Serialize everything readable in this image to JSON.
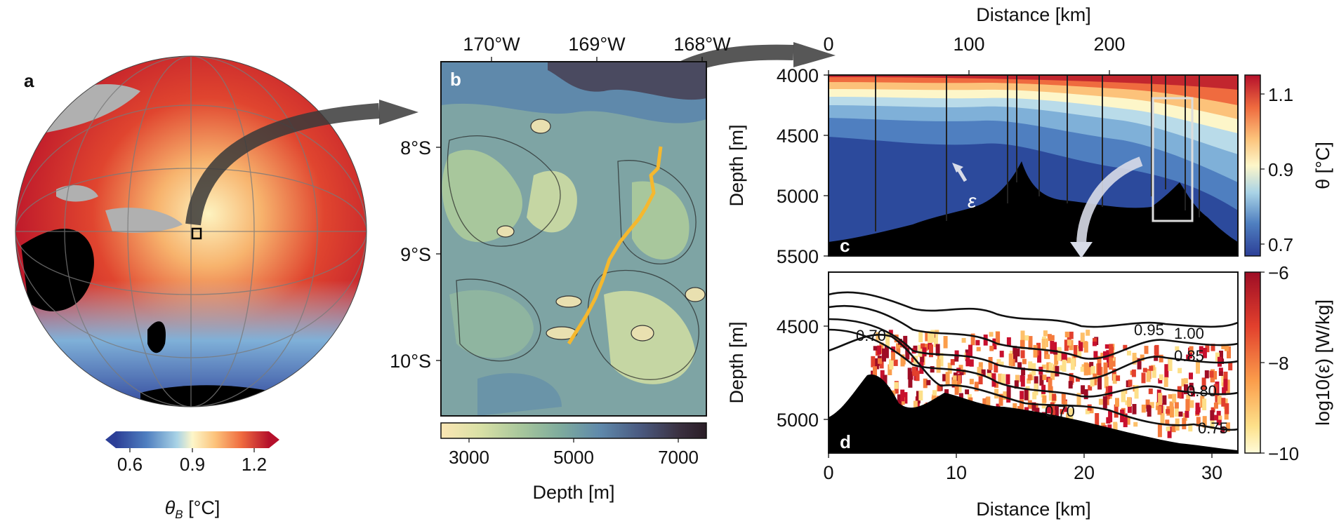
{
  "panel_a": {
    "letter": "a",
    "colorbar": {
      "ticks": [
        "0.6",
        "0.9",
        "1.2"
      ],
      "label": "θ_B [°C]",
      "label_main": "θ",
      "label_sub": "B",
      "label_unit": " [°C]"
    },
    "colors": {
      "cold": "#2f4aa0",
      "mid": "#fdf5c8",
      "warm": "#c8102e",
      "land": "#b0b0b0",
      "continent": "#000000"
    }
  },
  "panel_b": {
    "letter": "b",
    "lon_ticks": [
      "170°W",
      "169°W",
      "168°W"
    ],
    "lat_ticks": [
      "8°S",
      "9°S",
      "10°S"
    ],
    "colorbar": {
      "ticks": [
        "3000",
        "5000",
        "7000"
      ],
      "label": "Depth [m]"
    },
    "track_color": "#f5b82e"
  },
  "panel_c": {
    "letter": "c",
    "top_axis_label": "Distance [km]",
    "top_ticks": [
      "0",
      "100",
      "200"
    ],
    "ylabel": "Depth [m]",
    "y_ticks": [
      "4000",
      "4500",
      "5000",
      "5500"
    ],
    "epsilon_label": "ε",
    "colorbar": {
      "ticks": [
        "1.1",
        "0.9",
        "0.7"
      ],
      "label": "θ [°C]"
    }
  },
  "panel_d": {
    "letter": "d",
    "xlabel": "Distance [km]",
    "x_ticks": [
      "0",
      "10",
      "20",
      "30"
    ],
    "ylabel": "Depth [m]",
    "y_ticks": [
      "4500",
      "5000"
    ],
    "contour_labels": [
      "1.00",
      "0.95",
      "0.85",
      "0.80",
      "0.75",
      "0.70",
      "0.70"
    ],
    "colorbar": {
      "ticks": [
        "−6",
        "−8",
        "−10"
      ],
      "label": "log10(ε) [W/kg]"
    }
  }
}
